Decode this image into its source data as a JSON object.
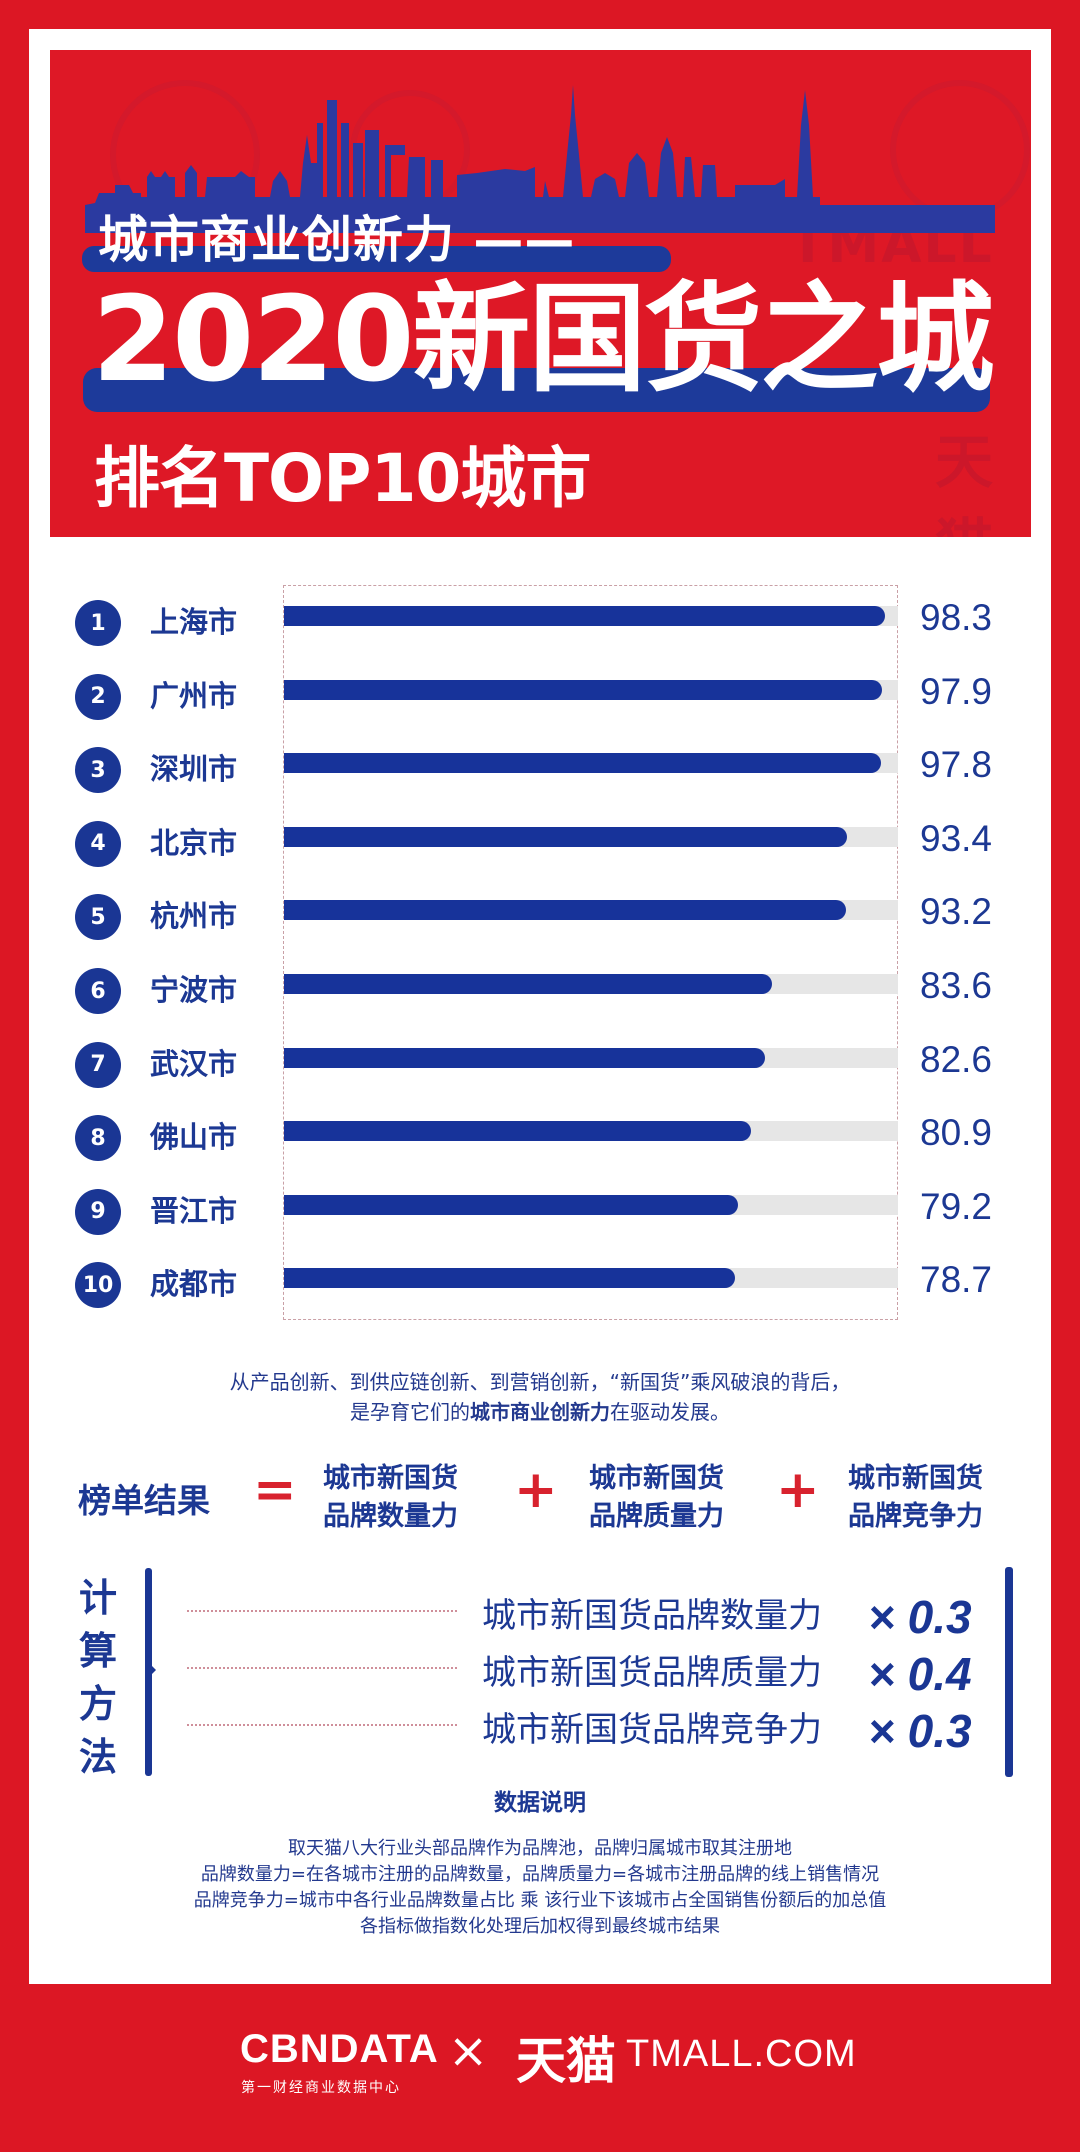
{
  "header": {
    "subtitle": "城市商业创新力 ——",
    "title": "2020新国货之城",
    "rank_title": "排名TOP10城市",
    "watermark_en": "TMALL",
    "watermark_cn": "天猫"
  },
  "colors": {
    "brand_red": "#dc1724",
    "brand_blue": "#1a3694",
    "bar_track": "#e6e6e6",
    "text_blue": "#1c3893"
  },
  "chart_data": {
    "type": "bar",
    "orientation": "horizontal",
    "title": "2020新国货之城 排名TOP10城市",
    "subtitle": "城市商业创新力",
    "categories": [
      "上海市",
      "广州市",
      "深圳市",
      "北京市",
      "杭州市",
      "宁波市",
      "武汉市",
      "佛山市",
      "晋江市",
      "成都市"
    ],
    "ranks": [
      "1",
      "2",
      "3",
      "4",
      "5",
      "6",
      "7",
      "8",
      "9",
      "10"
    ],
    "values": [
      98.3,
      97.9,
      97.8,
      93.4,
      93.2,
      83.6,
      82.6,
      80.9,
      79.2,
      78.7
    ],
    "value_labels": [
      "98.3",
      "97.9",
      "97.8",
      "93.4",
      "93.2",
      "83.6",
      "82.6",
      "80.9",
      "79.2",
      "78.7"
    ],
    "xlabel": "",
    "ylabel": "",
    "xlim": [
      20,
      100
    ],
    "grid": false,
    "legend": "none"
  },
  "description": {
    "line1": "从产品创新、到供应链创新、到营销创新，“新国货”乘风破浪的背后，",
    "line2_pre": "是孕育它们的",
    "line2_bold": "城市商业创新力",
    "line2_post": "在驱动发展。"
  },
  "formula": {
    "result": "榜单结果",
    "equals": "=",
    "plus": "+",
    "terms": [
      {
        "line1": "城市新国货",
        "line2": "品牌数量力"
      },
      {
        "line1": "城市新国货",
        "line2": "品牌质量力"
      },
      {
        "line1": "城市新国货",
        "line2": "品牌竞争力"
      }
    ]
  },
  "calc_method": {
    "label": [
      "计",
      "算",
      "方",
      "法"
    ],
    "items": [
      {
        "name": "城市新国货品牌数量力",
        "weight": "× 0.3"
      },
      {
        "name": "城市新国货品牌质量力",
        "weight": "× 0.4"
      },
      {
        "name": "城市新国货品牌竞争力",
        "weight": "× 0.3"
      }
    ]
  },
  "data_note": {
    "title": "数据说明",
    "lines": [
      "取天猫八大行业头部品牌作为品牌池，品牌归属城市取其注册地",
      "品牌数量力=在各城市注册的品牌数量，品牌质量力=各城市注册品牌的线上销售情况",
      "品牌竞争力=城市中各行业品牌数量占比 乘 该行业下该城市占全国销售份额后的加总值",
      "各指标做指数化处理后加权得到最终城市结果"
    ]
  },
  "footer": {
    "cbn_logo": "CBNDATA",
    "cbn_sub": "第一财经商业数据中心",
    "times": "×",
    "tmall_cn": "天猫",
    "tmall_en": "TMALL.COM"
  }
}
